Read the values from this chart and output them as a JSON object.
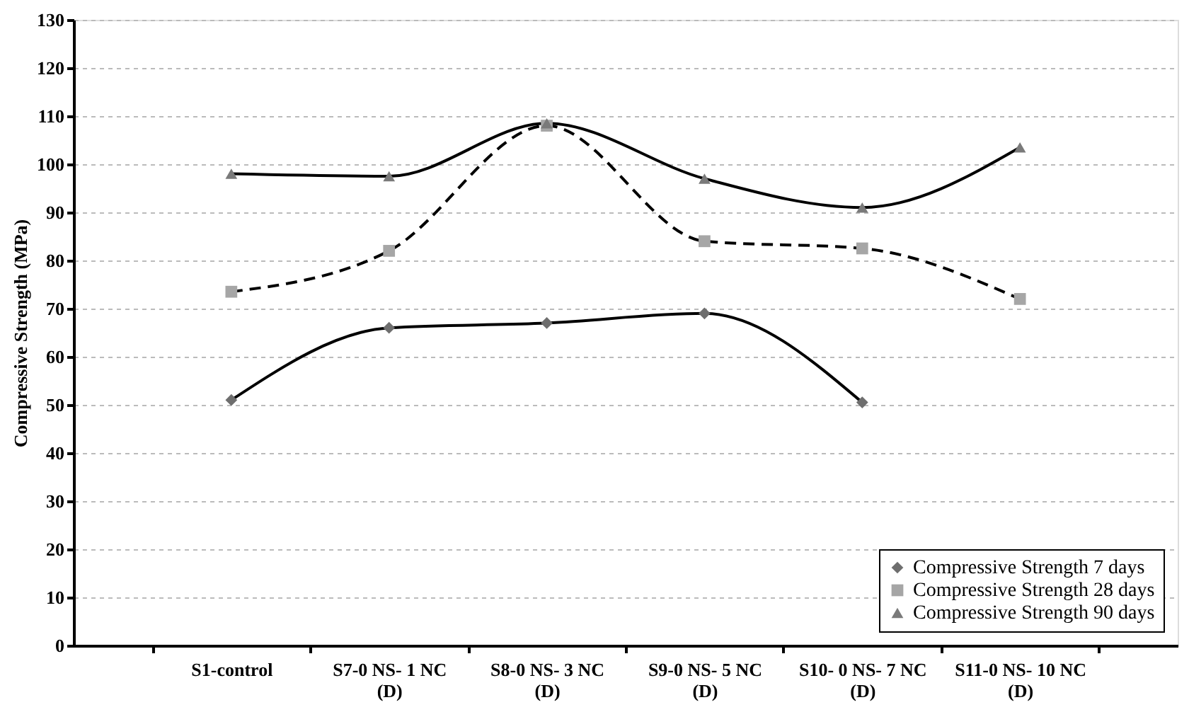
{
  "chart_data": {
    "type": "line",
    "ylabel": "Compressive Strength (MPa)",
    "categories": [
      "S1-control",
      "S7-0 NS- 1 NC\n(D)",
      "S8-0 NS- 3 NC\n(D)",
      "S9-0 NS- 5 NC\n(D)",
      "S10- 0 NS- 7 NC\n(D)",
      "S11-0 NS- 10 NC\n(D)"
    ],
    "series": [
      {
        "name": "Compressive Strength 7 days",
        "color": "#6e6e6e",
        "marker": "diamond",
        "line_style": "solid",
        "values": [
          51,
          66,
          67,
          69,
          50.5,
          null
        ]
      },
      {
        "name": "Compressive Strength 28 days",
        "color": "#a6a6a6",
        "marker": "square",
        "line_style": "dashed",
        "values": [
          73.5,
          82,
          108,
          84,
          82.5,
          72
        ]
      },
      {
        "name": "Compressive Strength 90 days",
        "color": "#7a7a7a",
        "marker": "triangle",
        "line_style": "solid",
        "values": [
          98,
          97.5,
          108.5,
          97,
          91,
          103.5
        ]
      }
    ],
    "ylim": [
      0,
      130
    ],
    "yticks": [
      0,
      10,
      20,
      30,
      40,
      50,
      60,
      70,
      80,
      90,
      100,
      110,
      120,
      130
    ],
    "grid": "y",
    "legend": "bottom right"
  }
}
